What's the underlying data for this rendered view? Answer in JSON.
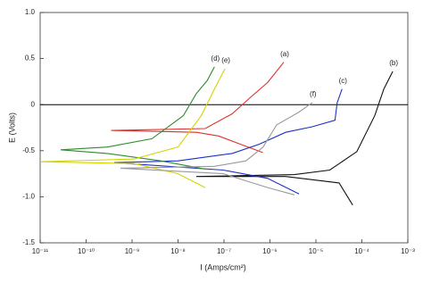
{
  "chart_data": {
    "type": "line",
    "x_label": "I (Amps/cm²)",
    "y_label": "E (Volts)",
    "xscale": "log",
    "xlim": [
      1e-11,
      0.001
    ],
    "xticks": [
      {
        "value": 1e-11,
        "label": "10⁻¹¹"
      },
      {
        "value": 1e-10,
        "label": "10⁻¹⁰"
      },
      {
        "value": 1e-09,
        "label": "10⁻⁹"
      },
      {
        "value": 1e-08,
        "label": "10⁻⁸"
      },
      {
        "value": 1e-07,
        "label": "10⁻⁷"
      },
      {
        "value": 1e-06,
        "label": "10⁻⁶"
      },
      {
        "value": 1e-05,
        "label": "10⁻⁵"
      },
      {
        "value": 0.0001,
        "label": "10⁻⁴"
      },
      {
        "value": 0.001,
        "label": "10⁻³"
      }
    ],
    "ylim": [
      -1.5,
      1
    ],
    "yticks": [
      {
        "value": 1,
        "label": "1.0"
      },
      0.5,
      0,
      -0.5,
      {
        "value": -1,
        "label": "-1.0"
      },
      -1.5
    ],
    "reference_line": 0,
    "grid": false,
    "series": [
      {
        "name": "(a)",
        "color": "#e0302a",
        "x": [
          7e-07,
          2.3e-07,
          7.6e-08,
          2.5e-08,
          2.7e-09,
          3.5e-10,
          3.9e-08,
          1.5e-07,
          3.6e-07,
          8.9e-07,
          2e-06
        ],
        "values": [
          -0.52,
          -0.43,
          -0.34,
          -0.3,
          -0.29,
          -0.28,
          -0.26,
          -0.1,
          0.07,
          0.24,
          0.46
        ]
      },
      {
        "name": "(b)",
        "color": "#111111",
        "x": [
          6.3e-05,
          3.2e-05,
          2.2e-06,
          2.5e-08,
          3.4e-06,
          2e-05,
          7.8e-05,
          0.00019,
          0.0003,
          0.00047
        ],
        "values": [
          -1.09,
          -0.85,
          -0.78,
          -0.78,
          -0.76,
          -0.71,
          -0.51,
          -0.12,
          0.17,
          0.36
        ]
      },
      {
        "name": "(c)",
        "color": "#1f2fc8",
        "x": [
          4.3e-06,
          8.9e-07,
          9.6e-08,
          4.1e-10,
          1e-08,
          1.5e-07,
          5.8e-07,
          2.2e-06,
          8.3e-06,
          2.6e-05,
          2.9e-05,
          3.7e-05
        ],
        "values": [
          -0.97,
          -0.8,
          -0.71,
          -0.63,
          -0.61,
          -0.53,
          -0.43,
          -0.3,
          -0.24,
          -0.17,
          0.02,
          0.17
        ]
      },
      {
        "name": "(d)",
        "color": "#2e8b2e",
        "x": [
          3.9e-08,
          4.2e-09,
          2.9e-10,
          2.8e-11,
          2.9e-10,
          2.7e-09,
          1.3e-08,
          2.5e-08,
          4.3e-08,
          6.2e-08
        ],
        "values": [
          -0.7,
          -0.61,
          -0.53,
          -0.49,
          -0.46,
          -0.37,
          -0.12,
          0.12,
          0.26,
          0.41
        ]
      },
      {
        "name": "(e)",
        "color": "#d4d400",
        "x": [
          3.9e-08,
          1e-08,
          1.1e-09,
          1e-11,
          1.1e-09,
          1e-08,
          3.2e-08,
          6.2e-08,
          1.05e-07
        ],
        "values": [
          -0.9,
          -0.75,
          -0.64,
          -0.62,
          -0.59,
          -0.46,
          -0.12,
          0.17,
          0.39
        ]
      },
      {
        "name": "(f)",
        "color": "#999999",
        "x": [
          3.4e-06,
          8.9e-07,
          9.6e-08,
          5.6e-10,
          6.2e-08,
          3e-07,
          7.1e-07,
          1.4e-06,
          4.3e-06,
          8.3e-06
        ],
        "values": [
          -0.98,
          -0.9,
          -0.75,
          -0.69,
          -0.67,
          -0.61,
          -0.46,
          -0.22,
          -0.08,
          0.02
        ]
      }
    ]
  }
}
